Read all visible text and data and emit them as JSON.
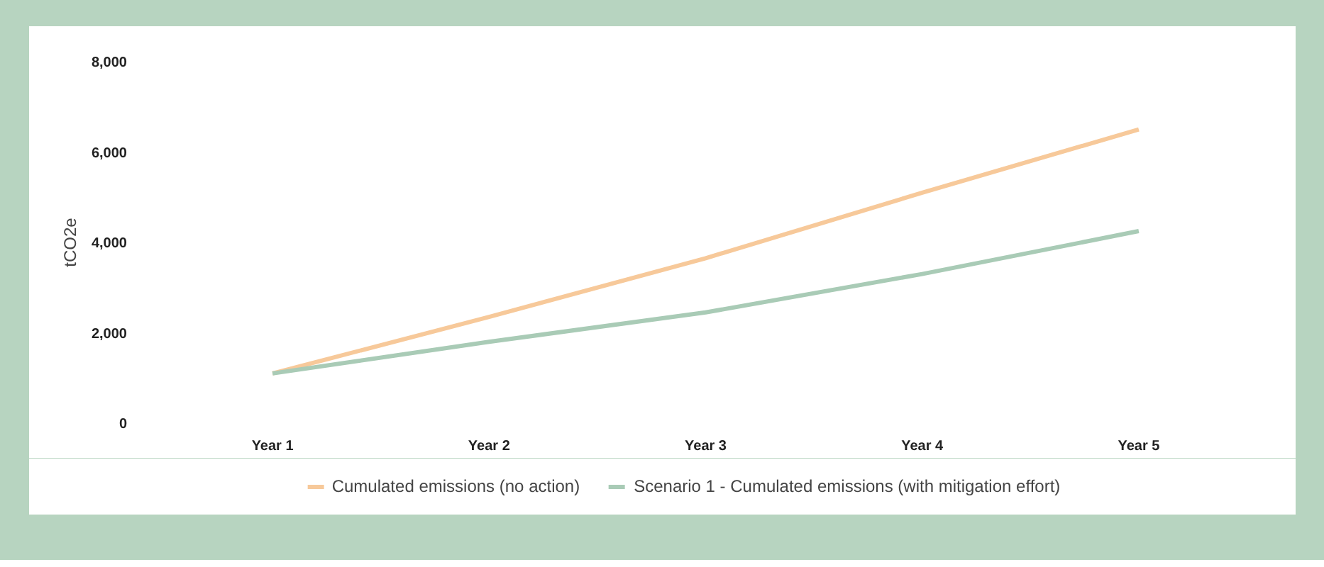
{
  "chart_data": {
    "type": "line",
    "ylabel": "tCO2e",
    "categories": [
      "Year 1",
      "Year 2",
      "Year 3",
      "Year 4",
      "Year 5"
    ],
    "ylim": [
      0,
      8000
    ],
    "yticks": [
      {
        "value": 0,
        "label": "0"
      },
      {
        "value": 2000,
        "label": "2,000"
      },
      {
        "value": 4000,
        "label": "4,000"
      },
      {
        "value": 6000,
        "label": "6,000"
      },
      {
        "value": 8000,
        "label": "8,000"
      }
    ],
    "series": [
      {
        "name": "Cumulated emissions (no action)",
        "color": "#f7c99a",
        "values": [
          1100,
          2350,
          3650,
          5100,
          6500
        ]
      },
      {
        "name": "Scenario 1 - Cumulated emissions (with mitigation effort)",
        "color": "#a9cbb6",
        "values": [
          1100,
          1800,
          2450,
          3300,
          4250
        ]
      }
    ],
    "grid": false,
    "legend": "bottom"
  }
}
